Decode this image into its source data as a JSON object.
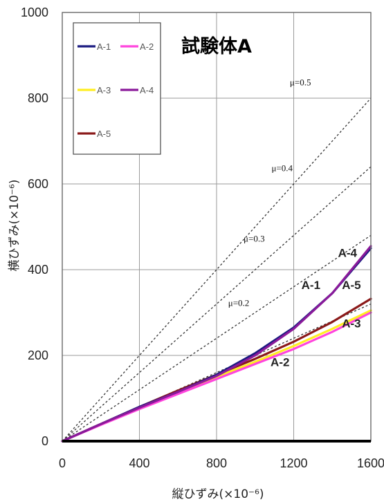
{
  "chart_data": {
    "type": "line",
    "title": "試験体A",
    "xlabel": "縦ひずみ(×10⁻⁶)",
    "ylabel": "横ひずみ(×10⁻⁶)",
    "xlim": [
      0,
      1600
    ],
    "ylim": [
      0,
      1000
    ],
    "xticks": [
      0,
      400,
      800,
      1200,
      1600
    ],
    "yticks": [
      0,
      200,
      400,
      600,
      800,
      1000
    ],
    "grid": true,
    "legend_position": "top-left",
    "series": [
      {
        "name": "A-1",
        "color": "#1a1a80",
        "x": [
          0,
          200,
          400,
          600,
          800,
          1000,
          1200,
          1400,
          1600
        ],
        "y": [
          0,
          40,
          80,
          115,
          155,
          205,
          265,
          345,
          450
        ]
      },
      {
        "name": "A-2",
        "color": "#ff44dd",
        "x": [
          0,
          200,
          400,
          600,
          800,
          1000,
          1200,
          1400,
          1600
        ],
        "y": [
          0,
          38,
          75,
          110,
          145,
          180,
          215,
          255,
          300
        ]
      },
      {
        "name": "A-3",
        "color": "#ffee22",
        "x": [
          0,
          200,
          400,
          600,
          800,
          1000,
          1200,
          1400,
          1600
        ],
        "y": [
          0,
          40,
          78,
          115,
          150,
          185,
          222,
          262,
          305
        ]
      },
      {
        "name": "A-4",
        "color": "#8a1a9a",
        "x": [
          0,
          200,
          400,
          600,
          800,
          1000,
          1200,
          1400,
          1600
        ],
        "y": [
          0,
          40,
          78,
          115,
          152,
          200,
          262,
          345,
          455
        ]
      },
      {
        "name": "A-5",
        "color": "#8b1a1a",
        "x": [
          0,
          200,
          400,
          600,
          800,
          1000,
          1200,
          1400,
          1600
        ],
        "y": [
          0,
          40,
          80,
          118,
          155,
          192,
          232,
          278,
          332
        ]
      }
    ],
    "reference_lines": [
      {
        "label": "μ=0.2",
        "slope": 0.2,
        "label_x": 860,
        "label_y": 315
      },
      {
        "label": "μ=0.3",
        "slope": 0.3,
        "label_x": 940,
        "label_y": 465
      },
      {
        "label": "μ=0.4",
        "slope": 0.4,
        "label_x": 1085,
        "label_y": 630
      },
      {
        "label": "μ=0.5",
        "slope": 0.5,
        "label_x": 1180,
        "label_y": 830
      }
    ],
    "annotations": [
      {
        "text": "A-4",
        "x": 1430,
        "y": 430
      },
      {
        "text": "A-1",
        "x": 1240,
        "y": 355
      },
      {
        "text": "A-5",
        "x": 1450,
        "y": 355
      },
      {
        "text": "A-3",
        "x": 1450,
        "y": 265
      },
      {
        "text": "A-2",
        "x": 1080,
        "y": 175
      }
    ]
  }
}
